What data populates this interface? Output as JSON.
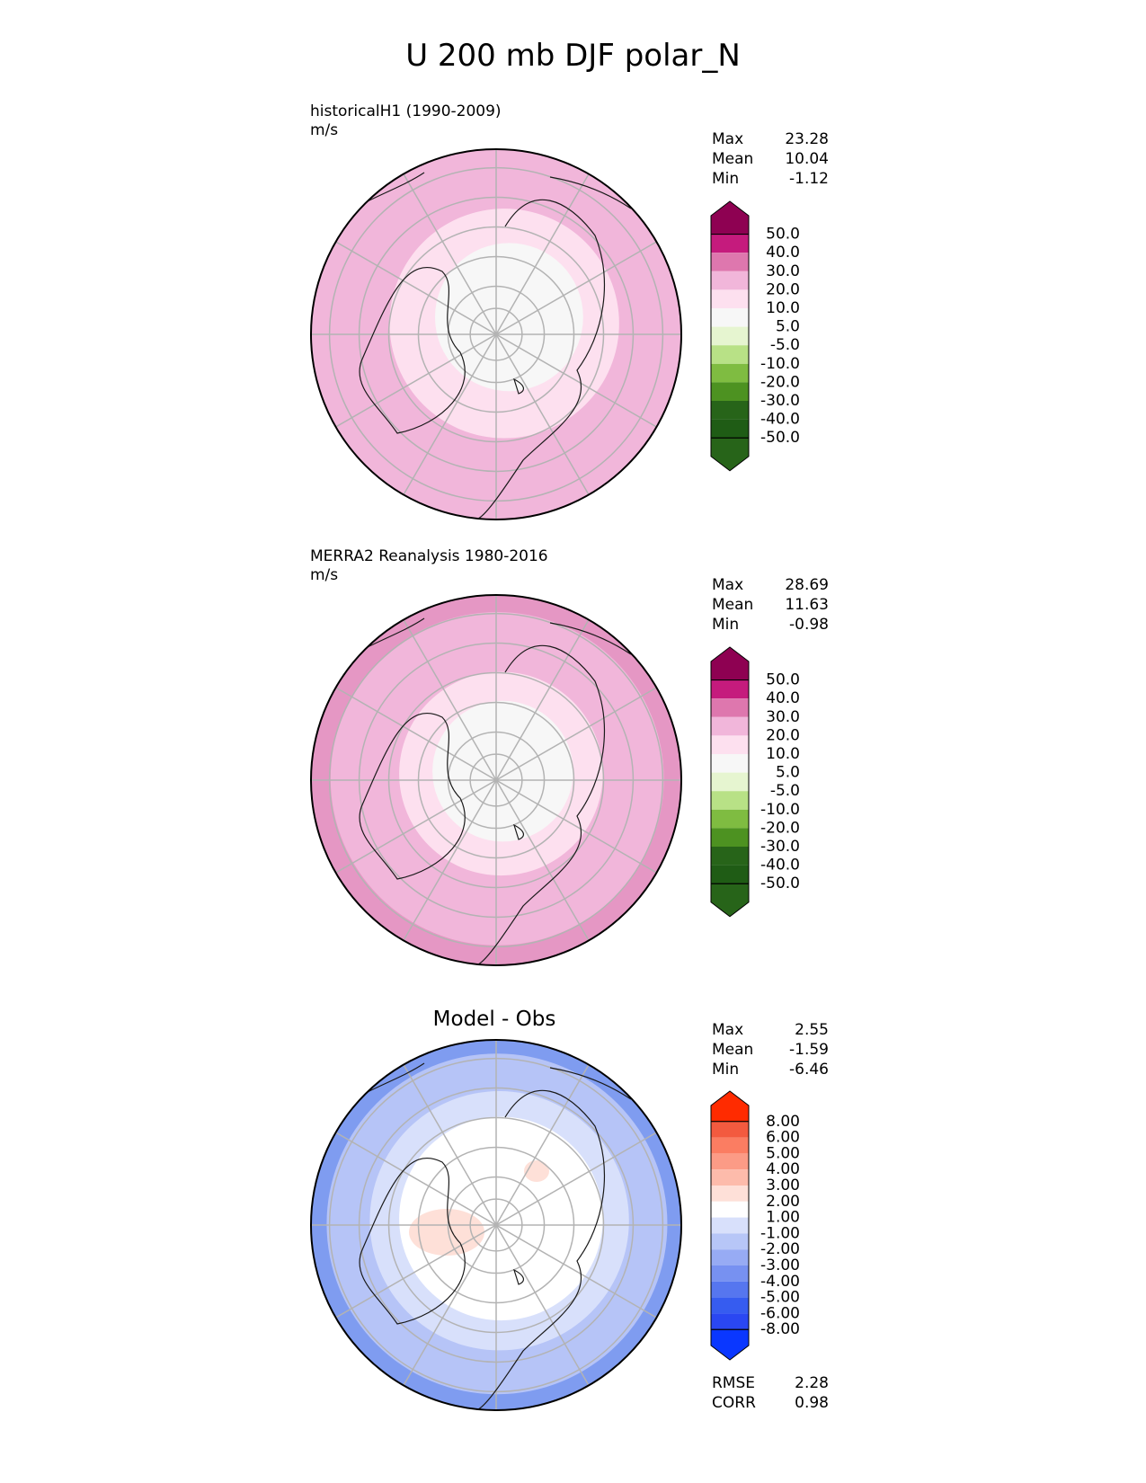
{
  "figure": {
    "title": "U 200 mb DJF polar_N"
  },
  "colors": {
    "map_outline": "#000000",
    "gridline": "#b3b3b3",
    "coast": "#1a1a1a"
  },
  "panels": [
    {
      "id": "test",
      "title": "historicalH1 (1990-2009)",
      "units": "m/s",
      "stats": {
        "max_label": "Max",
        "max": "23.28",
        "mean_label": "Mean",
        "mean": "10.04",
        "min_label": "Min",
        "min": "-1.12"
      },
      "colorbar": {
        "labels": [
          "50.0",
          "40.0",
          "30.0",
          "20.0",
          "10.0",
          "5.0",
          "-5.0",
          "-10.0",
          "-20.0",
          "-30.0",
          "-40.0",
          "-50.0"
        ],
        "colors": [
          "#8e0152",
          "#c51b7d",
          "#de77ae",
          "#f1b6da",
          "#fde0ef",
          "#f7f7f7",
          "#e6f5d0",
          "#b8e186",
          "#7fbc41",
          "#4d9221",
          "#276419",
          "#1f5c15",
          "#8e0152"
        ],
        "extend_top": "#8e0152",
        "extend_bottom": "#276419"
      },
      "rings": [
        {
          "r": 1.0,
          "color": "#f1b6da"
        },
        {
          "r": 0.62,
          "color": "#fde0ef"
        },
        {
          "r": 0.4,
          "color": "#f7f7f7"
        }
      ]
    },
    {
      "id": "reference",
      "title": "MERRA2 Reanalysis 1980-2016",
      "units": "m/s",
      "stats": {
        "max_label": "Max",
        "max": "28.69",
        "mean_label": "Mean",
        "mean": "11.63",
        "min_label": "Min",
        "min": "-0.98"
      },
      "colorbar": {
        "labels": [
          "50.0",
          "40.0",
          "30.0",
          "20.0",
          "10.0",
          "5.0",
          "-5.0",
          "-10.0",
          "-20.0",
          "-30.0",
          "-40.0",
          "-50.0"
        ],
        "colors": [
          "#8e0152",
          "#c51b7d",
          "#de77ae",
          "#f1b6da",
          "#fde0ef",
          "#f7f7f7",
          "#e6f5d0",
          "#b8e186",
          "#7fbc41",
          "#4d9221",
          "#276419",
          "#1f5c15",
          "#8e0152"
        ],
        "extend_top": "#8e0152",
        "extend_bottom": "#276419"
      },
      "rings": [
        {
          "r": 1.0,
          "color": "#e597c4"
        },
        {
          "r": 0.9,
          "color": "#f1b6da"
        },
        {
          "r": 0.55,
          "color": "#fde0ef"
        },
        {
          "r": 0.38,
          "color": "#f7f7f7"
        }
      ]
    },
    {
      "id": "diff",
      "title": "Model - Obs",
      "units": "",
      "stats": {
        "max_label": "Max",
        "max": "2.55",
        "mean_label": "Mean",
        "mean": "-1.59",
        "min_label": "Min",
        "min": "-6.46"
      },
      "colorbar": {
        "labels": [
          "8.00",
          "6.00",
          "5.00",
          "4.00",
          "3.00",
          "2.00",
          "1.00",
          "-1.00",
          "-2.00",
          "-3.00",
          "-4.00",
          "-5.00",
          "-6.00",
          "-8.00"
        ],
        "colors": [
          "#e8351c",
          "#f35a3f",
          "#fb7d62",
          "#fc9b86",
          "#fdbbab",
          "#fee0d8",
          "#ffffff",
          "#d8e0fb",
          "#b7c6f7",
          "#97abf4",
          "#7791f1",
          "#5676ef",
          "#365cf0",
          "#2a47f2",
          "#ff2a00"
        ],
        "extend_top": "#ff2b00",
        "extend_bottom": "#0a37ff"
      },
      "rings": [
        {
          "r": 1.0,
          "color": "#7f9cf0"
        },
        {
          "r": 0.92,
          "color": "#b6c4f7"
        },
        {
          "r": 0.7,
          "color": "#d8e0fb"
        },
        {
          "r": 0.55,
          "color": "#ffffff"
        }
      ],
      "footer": {
        "rmse_label": "RMSE",
        "rmse": "2.28",
        "corr_label": "CORR",
        "corr": "0.98"
      }
    }
  ],
  "chart_data": [
    {
      "type": "heatmap",
      "title": "historicalH1 (1990-2009)",
      "units": "m/s",
      "projection": "north polar stereographic",
      "summary": {
        "max": 23.28,
        "mean": 10.04,
        "min": -1.12
      },
      "levels": [
        -50,
        -40,
        -30,
        -20,
        -10,
        -5,
        5,
        10,
        20,
        30,
        40,
        50
      ]
    },
    {
      "type": "heatmap",
      "title": "MERRA2 Reanalysis 1980-2016",
      "units": "m/s",
      "projection": "north polar stereographic",
      "summary": {
        "max": 28.69,
        "mean": 11.63,
        "min": -0.98
      },
      "levels": [
        -50,
        -40,
        -30,
        -20,
        -10,
        -5,
        5,
        10,
        20,
        30,
        40,
        50
      ]
    },
    {
      "type": "heatmap",
      "title": "Model - Obs",
      "projection": "north polar stereographic",
      "summary": {
        "max": 2.55,
        "mean": -1.59,
        "min": -6.46,
        "rmse": 2.28,
        "corr": 0.98
      },
      "levels": [
        -8,
        -6,
        -5,
        -4,
        -3,
        -2,
        -1,
        1,
        2,
        3,
        4,
        5,
        6,
        8
      ]
    }
  ]
}
